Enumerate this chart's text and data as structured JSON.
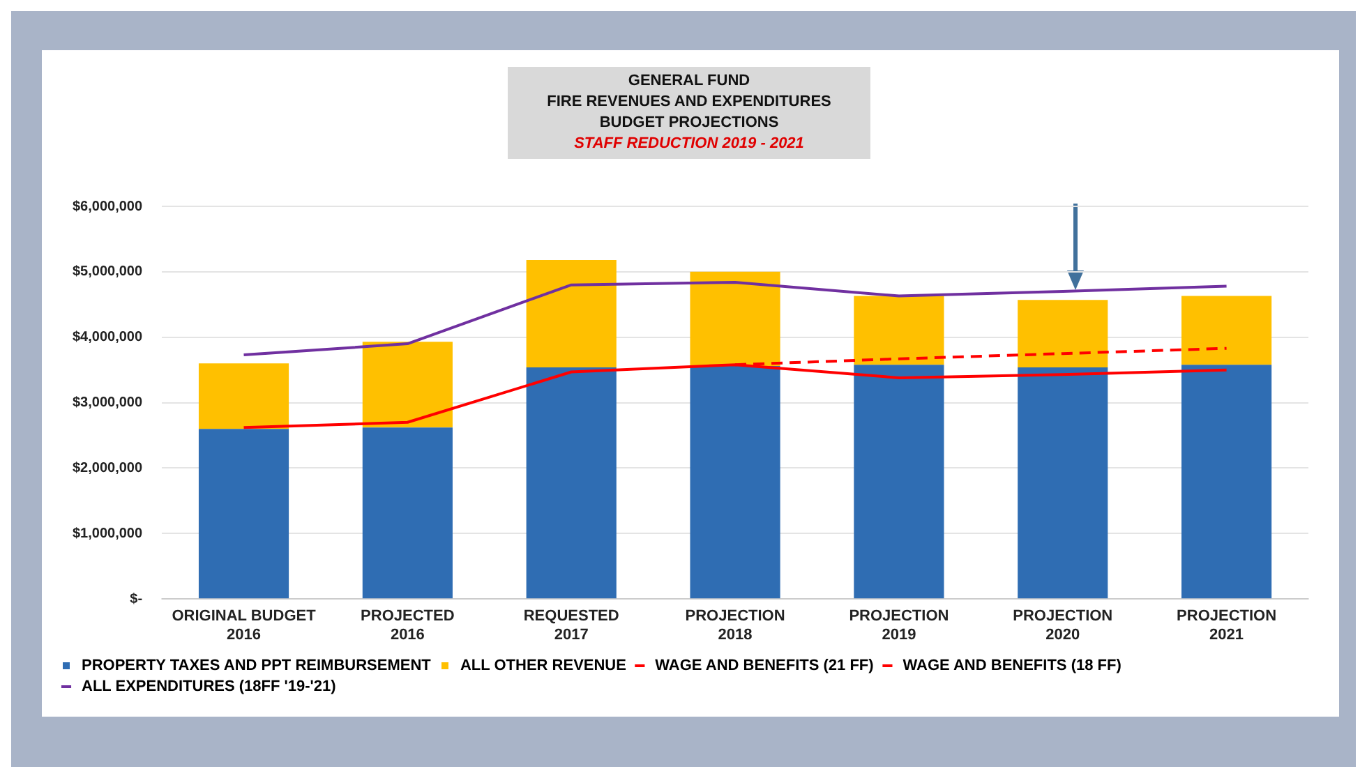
{
  "chart_data": {
    "type": "bar",
    "title": "GENERAL FUND\nFIRE REVENUES AND EXPENDITURES\nBUDGET PROJECTIONS",
    "subtitle": "STAFF REDUCTION 2019 - 2021",
    "categories": [
      "ORIGINAL BUDGET\n2016",
      "PROJECTED\n2016",
      "REQUESTED\n2017",
      "PROJECTION\n2018",
      "PROJECTION\n2019",
      "PROJECTION\n2020",
      "PROJECTION\n2021"
    ],
    "stacked": true,
    "series": [
      {
        "name": "PROPERTY TAXES AND PPT REIMBURSEMENT",
        "color": "#2f6db3",
        "values": [
          2600000,
          2620000,
          3540000,
          3560000,
          3580000,
          3540000,
          3580000
        ]
      },
      {
        "name": "ALL OTHER REVENUE",
        "color": "#ffc000",
        "values": [
          1000000,
          1310000,
          1640000,
          1440000,
          1050000,
          1030000,
          1050000
        ]
      },
      {
        "name": "WAGE AND BENEFITS (21 FF)",
        "type": "line",
        "color": "#ff0000",
        "line_style": "dashed",
        "values": [
          null,
          null,
          null,
          3580000,
          3670000,
          3750000,
          3830000
        ]
      },
      {
        "name": "WAGE AND BENEFITS (18 FF)",
        "type": "line",
        "color": "#ff0000",
        "line_style": "solid",
        "values": [
          2620000,
          2700000,
          3470000,
          3580000,
          3380000,
          3430000,
          3500000
        ]
      },
      {
        "name": "ALL EXPENDITURES (18FF '19-'21)",
        "type": "line",
        "color": "#7030a0",
        "line_style": "solid",
        "values": [
          3730000,
          3900000,
          4800000,
          4840000,
          4630000,
          4700000,
          4780000
        ]
      }
    ],
    "ylim": [
      0,
      6000000
    ],
    "yticks": [
      {
        "value": 0,
        "label": "$-"
      },
      {
        "value": 1000000,
        "label": "$1,000,000"
      },
      {
        "value": 2000000,
        "label": "$2,000,000"
      },
      {
        "value": 3000000,
        "label": "$3,000,000"
      },
      {
        "value": 4000000,
        "label": "$4,000,000"
      },
      {
        "value": 5000000,
        "label": "$5,000,000"
      },
      {
        "value": 6000000,
        "label": "$6,000,000"
      }
    ],
    "grid": "y",
    "legend": "bottom",
    "marker": "none"
  }
}
